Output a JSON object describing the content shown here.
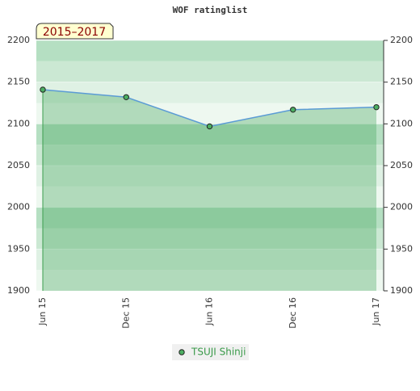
{
  "chart_data": {
    "type": "line",
    "title": "WOF ratinglist",
    "subtitle": "2015–2017",
    "categories": [
      "Jun 15",
      "Dec 15",
      "Jun 16",
      "Dec 16",
      "Jun 17"
    ],
    "series": [
      {
        "name": "TSUJI Shinji",
        "color": "#5b9bd5",
        "values": [
          2141,
          2132,
          2097,
          2117,
          2120
        ]
      }
    ],
    "ylim": [
      1900,
      2200
    ],
    "yticks": [
      1900,
      1950,
      2000,
      2050,
      2100,
      2150,
      2200
    ],
    "y2lim": [
      1900,
      2200
    ],
    "y2ticks": [
      1900,
      1950,
      2000,
      2050,
      2100,
      2150,
      2200
    ],
    "grid": true
  }
}
